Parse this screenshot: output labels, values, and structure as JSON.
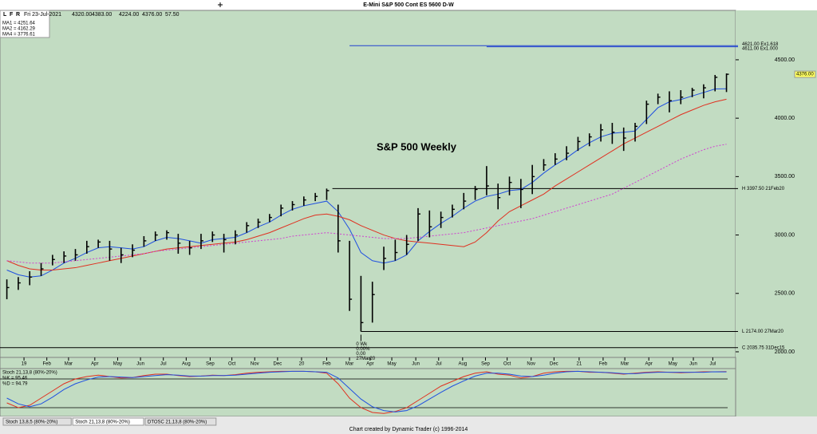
{
  "title": "E-Mini S&P 500 Cont ES 5600 D-W",
  "toolbar": [
    "L",
    "F",
    "R"
  ],
  "quote": [
    "Fri 23-Jul-2021",
    "4320.00",
    "4383.00",
    "4224.00",
    "4376.00",
    "57.50"
  ],
  "tabs": [
    "Stoch 13,8,5 (80%-20%)",
    "Stoch 21,13,8 (80%-20%)",
    "DTOSC 21,13,8 (80%-20%)"
  ],
  "footer": "Chart created by Dynamic Trader  (c) 1996-2014",
  "chart_data": [
    {
      "type": "ohlc",
      "annotation": "S&P 500 Weekly",
      "last_price_label": "4376.00",
      "close": [
        2550,
        2590,
        2640,
        2710,
        2790,
        2820,
        2830,
        2900,
        2940,
        2880,
        2830,
        2870,
        2950,
        3000,
        3020,
        2930,
        2890,
        2950,
        3000,
        2960,
        3000,
        3080,
        3110,
        3150,
        3230,
        3260,
        3300,
        3330,
        3380,
        2950,
        2450,
        2250,
        2490,
        2800,
        2850,
        2920,
        3180,
        3070,
        3150,
        3220,
        3290,
        3390,
        3420,
        3320,
        3450,
        3390,
        3500,
        3600,
        3650,
        3700,
        3800,
        3840,
        3900,
        3880,
        3830,
        3930,
        4120,
        4180,
        4150,
        4180,
        4240,
        4260,
        4350,
        4376
      ],
      "high": [
        2620,
        2640,
        2690,
        2760,
        2830,
        2860,
        2880,
        2950,
        2960,
        2950,
        2890,
        2920,
        2990,
        3030,
        3040,
        3010,
        2950,
        3010,
        3030,
        3010,
        3040,
        3110,
        3140,
        3180,
        3260,
        3290,
        3330,
        3360,
        3397.5,
        3260,
        2950,
        2650,
        2600,
        2900,
        2960,
        3000,
        3230,
        3210,
        3200,
        3260,
        3360,
        3420,
        3590,
        3440,
        3500,
        3480,
        3600,
        3650,
        3700,
        3760,
        3840,
        3870,
        3950,
        3960,
        3920,
        3960,
        4150,
        4210,
        4230,
        4240,
        4260,
        4290,
        4370,
        4383
      ],
      "low": [
        2450,
        2530,
        2570,
        2650,
        2740,
        2760,
        2780,
        2840,
        2890,
        2780,
        2760,
        2810,
        2900,
        2950,
        2960,
        2840,
        2830,
        2880,
        2940,
        2850,
        2920,
        3020,
        3060,
        3110,
        3160,
        3210,
        3250,
        3290,
        3300,
        2850,
        2350,
        2174,
        2250,
        2700,
        2780,
        2830,
        2950,
        2980,
        3060,
        3150,
        3220,
        3300,
        3340,
        3220,
        3340,
        3230,
        3350,
        3550,
        3600,
        3640,
        3720,
        3760,
        3800,
        3780,
        3720,
        3800,
        3950,
        4120,
        4050,
        4120,
        4180,
        4170,
        4230,
        4224
      ],
      "series": [
        {
          "name": "MA1 = 4251.64",
          "color": "#2050e0",
          "style": "solid",
          "values": [
            2700,
            2660,
            2640,
            2650,
            2700,
            2760,
            2800,
            2850,
            2890,
            2900,
            2890,
            2880,
            2900,
            2950,
            2980,
            2970,
            2950,
            2930,
            2960,
            2970,
            2980,
            3020,
            3070,
            3110,
            3170,
            3220,
            3250,
            3270,
            3290,
            3200,
            3050,
            2850,
            2780,
            2760,
            2780,
            2830,
            2950,
            3030,
            3100,
            3160,
            3230,
            3290,
            3330,
            3350,
            3380,
            3390,
            3450,
            3530,
            3600,
            3660,
            3730,
            3790,
            3840,
            3870,
            3880,
            3890,
            3990,
            4090,
            4140,
            4160,
            4190,
            4220,
            4250,
            4252
          ]
        },
        {
          "name": "MA2 = 4162.29",
          "color": "#e03020",
          "style": "solid",
          "values": [
            2780,
            2740,
            2710,
            2700,
            2700,
            2710,
            2720,
            2740,
            2760,
            2780,
            2800,
            2820,
            2840,
            2860,
            2880,
            2890,
            2900,
            2910,
            2920,
            2930,
            2940,
            2960,
            2990,
            3020,
            3060,
            3100,
            3140,
            3170,
            3180,
            3160,
            3130,
            3080,
            3040,
            3000,
            2970,
            2950,
            2940,
            2930,
            2920,
            2910,
            2900,
            2940,
            3020,
            3120,
            3200,
            3250,
            3300,
            3350,
            3420,
            3480,
            3540,
            3600,
            3660,
            3720,
            3780,
            3830,
            3880,
            3930,
            3980,
            4030,
            4070,
            4110,
            4140,
            4162
          ]
        },
        {
          "name": "MA4 = 3776.61",
          "color": "#d040d0",
          "style": "dotted",
          "values": [
            2780,
            2770,
            2760,
            2760,
            2760,
            2770,
            2780,
            2790,
            2800,
            2810,
            2820,
            2830,
            2840,
            2860,
            2870,
            2880,
            2890,
            2900,
            2910,
            2920,
            2930,
            2940,
            2950,
            2960,
            2970,
            2990,
            3000,
            3010,
            3020,
            3010,
            3000,
            2990,
            2980,
            2970,
            2970,
            2970,
            2980,
            2990,
            3000,
            3010,
            3020,
            3040,
            3060,
            3080,
            3100,
            3120,
            3140,
            3170,
            3200,
            3230,
            3260,
            3290,
            3320,
            3350,
            3400,
            3450,
            3500,
            3550,
            3600,
            3650,
            3690,
            3730,
            3760,
            3777
          ]
        }
      ],
      "levels": [
        {
          "value": 4621,
          "label": "4621.00 Ex1.618",
          "color": "#2040d0"
        },
        {
          "value": 4611,
          "label": "4611.00 Ex1.000",
          "color": "#2040d0"
        },
        {
          "value": 3397.5,
          "label": "H 3397.50 21Feb20",
          "color": "#000000"
        },
        {
          "value": 2174,
          "label": "L 2174.00 27Mar20",
          "color": "#000000"
        },
        {
          "value": 2035.75,
          "label": "C 2035.75 31Dec15",
          "color": "#000000"
        }
      ],
      "low_marker": [
        "0 Wk",
        "0.00%",
        "0.00",
        "27Mar20"
      ],
      "ylim": [
        1952,
        4923
      ],
      "yticks": [
        {
          "value": 2000,
          "label": "2000.00"
        },
        {
          "value": 2500,
          "label": "2500.00"
        },
        {
          "value": 3000,
          "label": "3000.00"
        },
        {
          "value": 3500,
          "label": "3500.00"
        },
        {
          "value": 4000,
          "label": "4000.00"
        },
        {
          "value": 4500,
          "label": "4500.00"
        }
      ],
      "xlim": [
        -0.6,
        63.8
      ],
      "xticks": [
        {
          "value": 1.5,
          "label": "19"
        },
        {
          "value": 3.5,
          "label": "Feb"
        },
        {
          "value": 5.4,
          "label": "Mar"
        },
        {
          "value": 7.7,
          "label": "Apr"
        },
        {
          "value": 9.7,
          "label": "May"
        },
        {
          "value": 11.7,
          "label": "Jun"
        },
        {
          "value": 13.7,
          "label": "Jul"
        },
        {
          "value": 15.7,
          "label": "Aug"
        },
        {
          "value": 17.8,
          "label": "Sep"
        },
        {
          "value": 19.7,
          "label": "Oct"
        },
        {
          "value": 21.7,
          "label": "Nov"
        },
        {
          "value": 23.7,
          "label": "Dec"
        },
        {
          "value": 25.8,
          "label": "20"
        },
        {
          "value": 28,
          "label": "Feb"
        },
        {
          "value": 30,
          "label": "Mar"
        },
        {
          "value": 31.8,
          "label": "Apr"
        },
        {
          "value": 33.7,
          "label": "May"
        },
        {
          "value": 35.8,
          "label": "Jun"
        },
        {
          "value": 37.8,
          "label": "Jul"
        },
        {
          "value": 39.9,
          "label": "Aug"
        },
        {
          "value": 41.9,
          "label": "Sep"
        },
        {
          "value": 43.8,
          "label": "Oct"
        },
        {
          "value": 45.9,
          "label": "Nov"
        },
        {
          "value": 47.9,
          "label": "Dec"
        },
        {
          "value": 50.1,
          "label": "21"
        },
        {
          "value": 52.2,
          "label": "Feb"
        },
        {
          "value": 54.1,
          "label": "Mar"
        },
        {
          "value": 56.2,
          "label": "Apr"
        },
        {
          "value": 58.3,
          "label": "May"
        },
        {
          "value": 60.1,
          "label": "Jun"
        },
        {
          "value": 61.8,
          "label": "Jul"
        }
      ]
    },
    {
      "type": "line",
      "title": "Stoch 21,13,8 (80%-20%)",
      "ylim": [
        0,
        100
      ],
      "levels": [
        80,
        20
      ],
      "xlim": [
        -0.6,
        63.8
      ],
      "series": [
        {
          "name": "%K = 95.46",
          "color": "#e03020",
          "values": [
            30,
            20,
            25,
            40,
            55,
            70,
            80,
            85,
            88,
            85,
            82,
            83,
            87,
            90,
            90,
            87,
            85,
            86,
            88,
            87,
            89,
            92,
            94,
            95,
            96,
            96,
            96,
            95,
            92,
            70,
            40,
            20,
            10,
            8,
            12,
            20,
            35,
            50,
            65,
            75,
            85,
            92,
            95,
            90,
            88,
            82,
            85,
            92,
            95,
            96,
            96,
            94,
            94,
            92,
            90,
            92,
            94,
            95,
            94,
            93,
            94,
            95,
            95,
            95.46
          ]
        },
        {
          "name": "%D = 94.79",
          "color": "#2050e0",
          "values": [
            40,
            28,
            22,
            28,
            42,
            58,
            70,
            78,
            84,
            85,
            84,
            83,
            85,
            87,
            89,
            88,
            86,
            86,
            87,
            87,
            88,
            90,
            92,
            94,
            95,
            96,
            96,
            95,
            94,
            82,
            60,
            38,
            22,
            14,
            11,
            14,
            24,
            38,
            52,
            65,
            76,
            86,
            92,
            92,
            90,
            86,
            85,
            88,
            92,
            95,
            96,
            95,
            94,
            93,
            91,
            91,
            93,
            94,
            94,
            94,
            94,
            94,
            95,
            94.79
          ]
        }
      ]
    }
  ]
}
